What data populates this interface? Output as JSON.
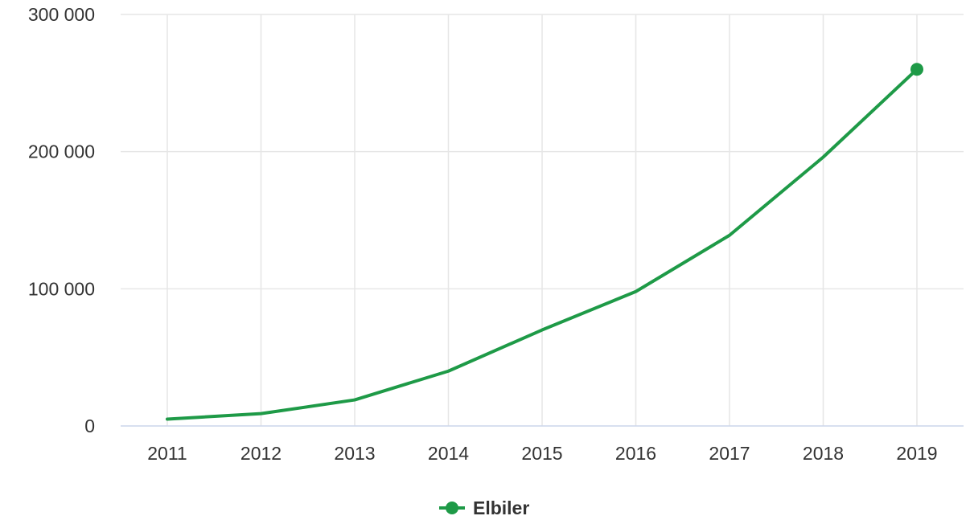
{
  "chart_data": {
    "type": "line",
    "categories": [
      "2011",
      "2012",
      "2013",
      "2014",
      "2015",
      "2016",
      "2017",
      "2018",
      "2019"
    ],
    "x": [
      2011,
      2012,
      2013,
      2014,
      2015,
      2016,
      2017,
      2018,
      2019
    ],
    "series": [
      {
        "name": "Elbiler",
        "color": "#1e9a47",
        "values": [
          5000,
          9000,
          19000,
          40000,
          70000,
          98000,
          139000,
          196000,
          260000
        ]
      }
    ],
    "title": "",
    "xlabel": "",
    "ylabel": "",
    "ylim": [
      0,
      300000
    ],
    "yticks": [
      0,
      100000,
      200000,
      300000
    ],
    "ytick_labels": [
      "0",
      "100 000",
      "200 000",
      "300 000"
    ],
    "grid": true,
    "legend_position": "bottom-center",
    "marker_on_last_point": true
  },
  "colors": {
    "grid": "#e6e6e6",
    "axis": "#ccd6eb",
    "text": "#333333",
    "series": "#1e9a47"
  }
}
